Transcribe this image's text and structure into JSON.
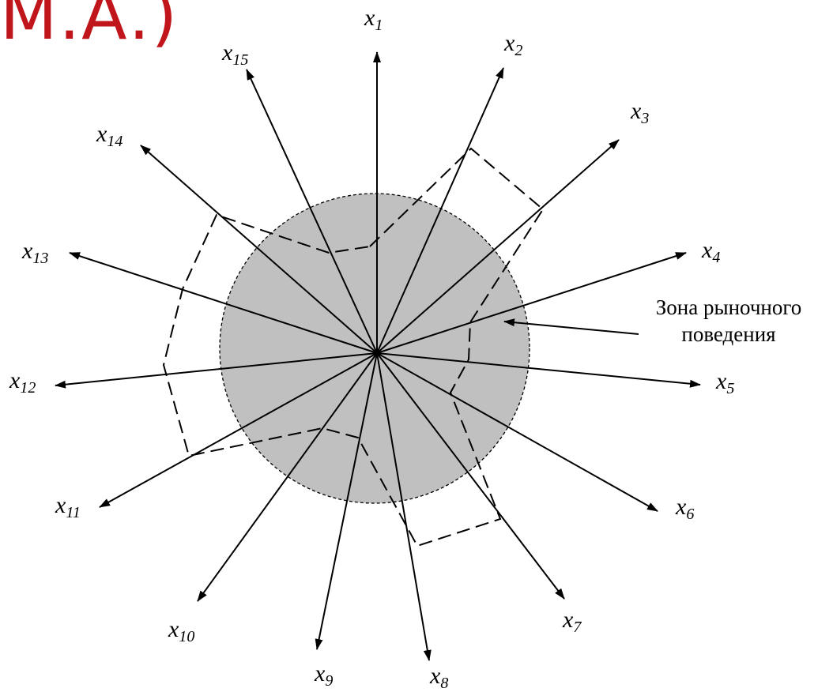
{
  "heading": {
    "text": "М.А.)",
    "color": "#c0161b"
  },
  "zone": {
    "label_line1": "Зона рыночного",
    "label_line2": "поведения",
    "fill": "#c0c0c0"
  },
  "axes": [
    {
      "var": "x",
      "index": "1"
    },
    {
      "var": "x",
      "index": "2"
    },
    {
      "var": "x",
      "index": "3"
    },
    {
      "var": "x",
      "index": "4"
    },
    {
      "var": "x",
      "index": "5"
    },
    {
      "var": "x",
      "index": "6"
    },
    {
      "var": "x",
      "index": "7"
    },
    {
      "var": "x",
      "index": "8"
    },
    {
      "var": "x",
      "index": "9"
    },
    {
      "var": "x",
      "index": "10"
    },
    {
      "var": "x",
      "index": "11"
    },
    {
      "var": "x",
      "index": "12"
    },
    {
      "var": "x",
      "index": "13"
    },
    {
      "var": "x",
      "index": "14"
    },
    {
      "var": "x",
      "index": "15"
    }
  ]
}
